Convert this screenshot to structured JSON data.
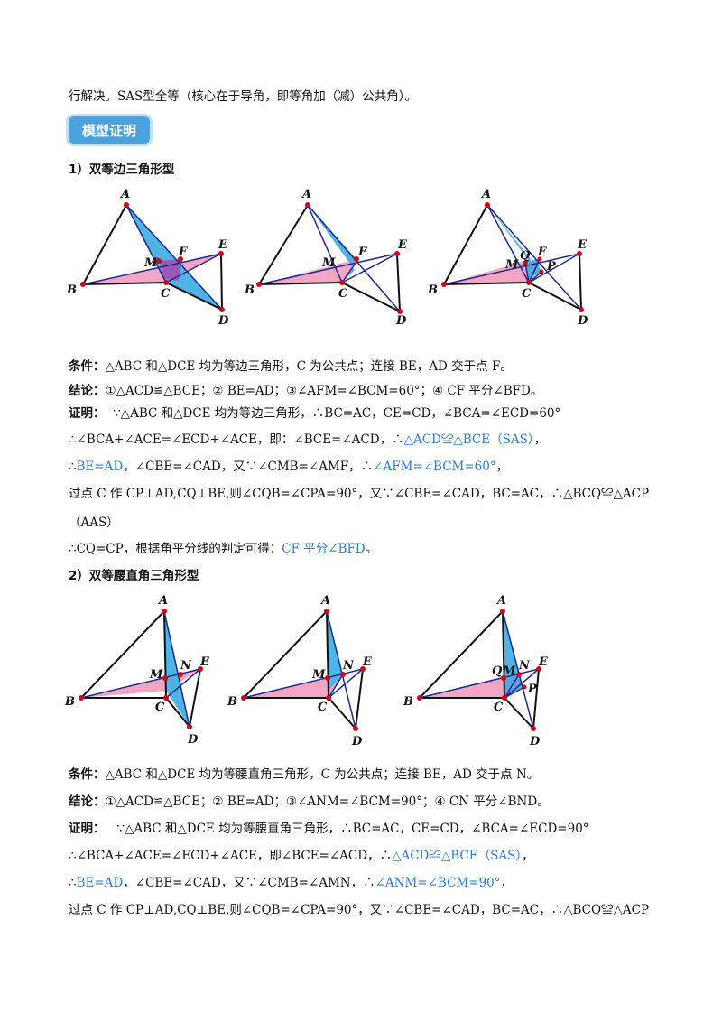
{
  "intro": "行解决。SAS型全等（核心在于导角，即等角加（减）公共角）。",
  "badge": "模型证明",
  "section1": {
    "title": "1）双等边三角形型",
    "cond_label": "条件：",
    "cond": "△ABC 和△DCE 均为等边三角形，C 为公共点；连接 BE，AD 交于点 F。",
    "concl_label": "结论：",
    "concl": "①△ACD≌△BCE；② BE=AD；③∠AFM=∠BCM=60°；④ CF 平分∠BFD。",
    "proof_label": "证明：",
    "p1": "∵△ABC 和△DCE 均为等边三角形，∴BC=AC，CE=CD，∠BCA=∠ECD=60°",
    "p2a": "∴∠BCA+∠ACE=∠ECD+∠ACE，即：∠BCE=∠ACD，∴",
    "p2b": "△ACD≌△BCE（SAS）",
    "p2c": "，",
    "p3a": "∴",
    "p3b": "BE=AD",
    "p3c": "，∠CBE=∠CAD，又∵∠CMB=∠AMF，∴",
    "p3d": "∠AFM=∠BCM=60°",
    "p3e": "，",
    "p4": "过点 C 作 CP⊥AD,CQ⊥BE,则∠CQB=∠CPA=90°，又∵∠CBE=∠CAD，BC=AC，∴△BCQ≌△ACP",
    "p5": "（AAS）",
    "p6a": "∴CQ=CP，根据角平分线的判定可得：",
    "p6b": "CF 平分∠BFD",
    "p6c": "。"
  },
  "section2": {
    "title": "2）双等腰直角三角形型",
    "cond_label": "条件：",
    "cond": "△ABC 和△DCE 均为等腰直角三角形，C 为公共点；连接 BE，AD 交于点 N。",
    "concl_label": "结论：",
    "concl": "①△ACD≌△BCE；② BE=AD；③∠ANM=∠BCM=90°；④ CN 平分∠BND。",
    "proof_label": "证明：",
    "p1": "∵△ABC 和△DCE 均为等腰直角三角形，∴BC=AC，CE=CD，∠BCA=∠ECD=90°",
    "p2a": "∴∠BCA+∠ACE=∠ECD+∠ACE，即∠BCE=∠ACD，∴",
    "p2b": "△ACD≌△BCE（SAS）",
    "p2c": "，",
    "p3a": "∴",
    "p3b": "BE=AD",
    "p3c": "，∠CBE=∠CAD，又∵∠CMB=∠AMN，∴",
    "p3d": "∠ANM=∠BCM=90°",
    "p3e": "，",
    "p4": "过点 C 作 CP⊥AD,CQ⊥BE,则∠CQB=∠CPA=90°，又∵∠CBE=∠CAD，BC=AC，∴△BCQ≌△ACP"
  },
  "figures": {
    "eq_labels": {
      "A": "A",
      "B": "B",
      "C": "C",
      "D": "D",
      "E": "E",
      "F": "F",
      "M": "M",
      "P": "P",
      "Q": "Q"
    },
    "rt_labels": {
      "A": "A",
      "B": "B",
      "C": "C",
      "D": "D",
      "E": "E",
      "N": "N",
      "M": "M",
      "P": "P",
      "Q": "Q"
    }
  },
  "colors": {
    "pink": "#f3a6c4",
    "cyan": "#4fb3e6",
    "purple": "#9b59b6",
    "line": "#1b2a8c",
    "blue_text": "#2b7bd6",
    "badge": "#4aa3df"
  }
}
